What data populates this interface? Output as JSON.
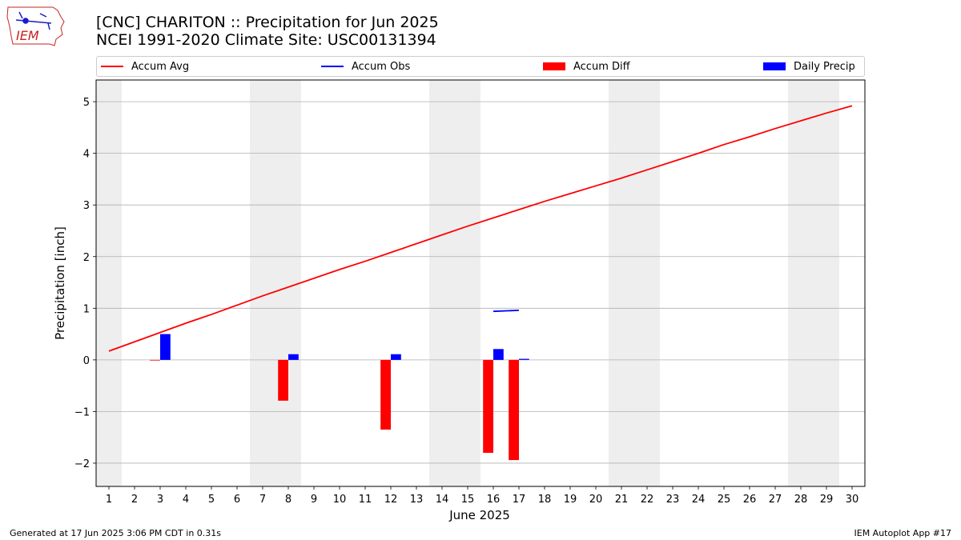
{
  "header": {
    "title_line1": "[CNC] CHARITON :: Precipitation for Jun 2025",
    "title_line2": "NCEI 1991-2020 Climate Site: USC00131394"
  },
  "logo": {
    "text": "IEM",
    "icon": "iowa-state-outline-weather-icon"
  },
  "footer": {
    "left": "Generated at 17 Jun 2025 3:06 PM CDT in 0.31s",
    "right": "IEM Autoplot App #17"
  },
  "colors": {
    "avg": "#ff0000",
    "obs": "#0000ff",
    "diff": "#ff0000",
    "daily": "#0000ff",
    "weekend_shade": "#eeeeee",
    "grid": "#b0b0b0"
  },
  "chart_data": {
    "type": "bar",
    "xlabel": "June 2025",
    "ylabel": "Precipitation [inch]",
    "xlim": [
      0.5,
      30.5
    ],
    "ylim": [
      -2.45,
      5.42
    ],
    "yticks": [
      -2,
      -1,
      0,
      1,
      2,
      3,
      4,
      5
    ],
    "ytick_labels": [
      "−2",
      "−1",
      "0",
      "1",
      "2",
      "3",
      "4",
      "5"
    ],
    "xticks": [
      1,
      2,
      3,
      4,
      5,
      6,
      7,
      8,
      9,
      10,
      11,
      12,
      13,
      14,
      15,
      16,
      17,
      18,
      19,
      20,
      21,
      22,
      23,
      24,
      25,
      26,
      27,
      28,
      29,
      30
    ],
    "xtick_labels": [
      "1",
      "2",
      "3",
      "4",
      "5",
      "6",
      "7",
      "8",
      "9",
      "10",
      "11",
      "12",
      "13",
      "14",
      "15",
      "16",
      "17",
      "18",
      "19",
      "20",
      "21",
      "22",
      "23",
      "24",
      "25",
      "26",
      "27",
      "28",
      "29",
      "30"
    ],
    "grid": "horizontal",
    "legend_placement": "top",
    "weekend_shading": [
      [
        0.5,
        1.5
      ],
      [
        6.5,
        8.5
      ],
      [
        13.5,
        15.5
      ],
      [
        20.5,
        22.5
      ],
      [
        27.5,
        29.5
      ]
    ],
    "series": [
      {
        "name": "Accum Avg",
        "kind": "line",
        "x": [
          1,
          2,
          3,
          4,
          5,
          6,
          7,
          8,
          9,
          10,
          11,
          12,
          13,
          14,
          15,
          16,
          17,
          18,
          19,
          20,
          21,
          22,
          23,
          24,
          25,
          26,
          27,
          28,
          29,
          30
        ],
        "values": [
          0.17,
          0.35,
          0.53,
          0.71,
          0.88,
          1.06,
          1.24,
          1.41,
          1.58,
          1.75,
          1.91,
          2.08,
          2.25,
          2.42,
          2.59,
          2.75,
          2.91,
          3.07,
          3.22,
          3.37,
          3.52,
          3.68,
          3.84,
          4.0,
          4.17,
          4.32,
          4.48,
          4.63,
          4.78,
          4.92
        ]
      },
      {
        "name": "Accum Obs",
        "kind": "line",
        "x": [
          16,
          17
        ],
        "values": [
          0.94,
          0.96
        ]
      },
      {
        "name": "Accum Diff",
        "kind": "bar",
        "x": [
          3,
          8,
          12,
          16,
          17
        ],
        "values": [
          -0.01,
          -0.79,
          -1.35,
          -1.8,
          -1.94
        ]
      },
      {
        "name": "Daily Precip",
        "kind": "bar",
        "x": [
          3,
          8,
          12,
          16,
          17
        ],
        "values": [
          0.5,
          0.11,
          0.11,
          0.21,
          0.02
        ]
      }
    ]
  }
}
